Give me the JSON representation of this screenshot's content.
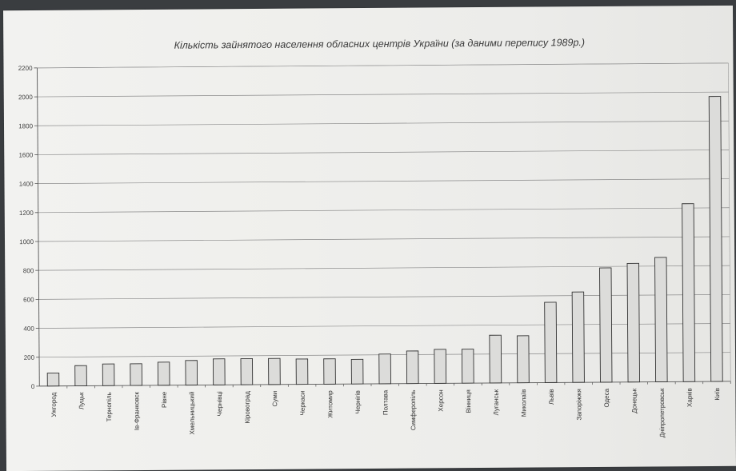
{
  "chart_data": {
    "type": "bar",
    "title": "Кількість зайнятого населення обласних центрів України (за даними перепису 1989р.)",
    "xlabel": "",
    "ylabel": "",
    "ylim": [
      0,
      2200
    ],
    "yticks": [
      0,
      200,
      400,
      600,
      800,
      1000,
      1200,
      1400,
      1600,
      1800,
      2000,
      2200
    ],
    "grid": true,
    "categories": [
      "Ужгород",
      "Луцьк",
      "Тернопіль",
      "Ів-Франковск",
      "Рівне",
      "Хмельницький",
      "Чернівці",
      "Кіровоград",
      "Суми",
      "Черкаси",
      "Житомир",
      "Чернігів",
      "Полтава",
      "Симферопіль",
      "Херсон",
      "Вінниця",
      "Луганськ",
      "Миколаїв",
      "Львів",
      "Запоріжжя",
      "Одеса",
      "Донецьк",
      "Дніпропетровськ",
      "Харків",
      "Київ"
    ],
    "values": [
      90,
      140,
      150,
      150,
      160,
      170,
      180,
      180,
      180,
      175,
      175,
      170,
      205,
      225,
      235,
      235,
      330,
      325,
      555,
      625,
      790,
      820,
      860,
      1230,
      1970
    ],
    "bar_color": "#dcdcda"
  }
}
